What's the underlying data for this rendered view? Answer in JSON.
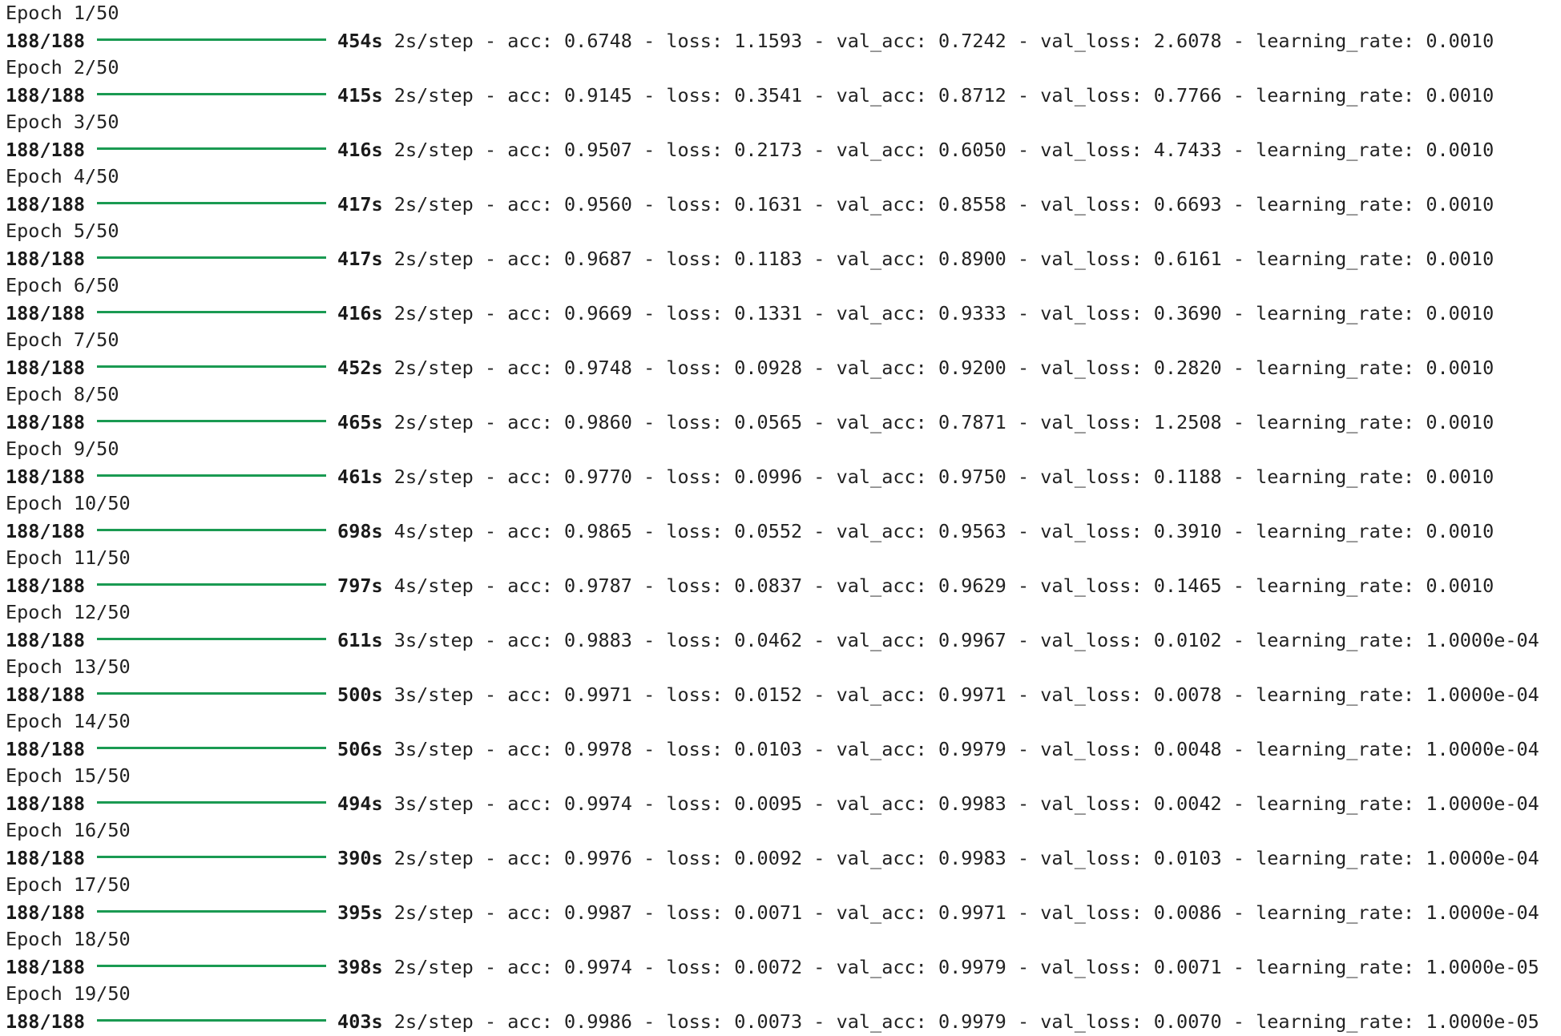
{
  "log": {
    "epochs": [
      {
        "header": "Epoch 1/50",
        "steps": "188/188",
        "time": "454s",
        "per_step": "2s/step",
        "acc": "0.6748",
        "loss": "1.1593",
        "val_acc": "0.7242",
        "val_loss": "2.6078",
        "learning_rate": "0.0010"
      },
      {
        "header": "Epoch 2/50",
        "steps": "188/188",
        "time": "415s",
        "per_step": "2s/step",
        "acc": "0.9145",
        "loss": "0.3541",
        "val_acc": "0.8712",
        "val_loss": "0.7766",
        "learning_rate": "0.0010"
      },
      {
        "header": "Epoch 3/50",
        "steps": "188/188",
        "time": "416s",
        "per_step": "2s/step",
        "acc": "0.9507",
        "loss": "0.2173",
        "val_acc": "0.6050",
        "val_loss": "4.7433",
        "learning_rate": "0.0010"
      },
      {
        "header": "Epoch 4/50",
        "steps": "188/188",
        "time": "417s",
        "per_step": "2s/step",
        "acc": "0.9560",
        "loss": "0.1631",
        "val_acc": "0.8558",
        "val_loss": "0.6693",
        "learning_rate": "0.0010"
      },
      {
        "header": "Epoch 5/50",
        "steps": "188/188",
        "time": "417s",
        "per_step": "2s/step",
        "acc": "0.9687",
        "loss": "0.1183",
        "val_acc": "0.8900",
        "val_loss": "0.6161",
        "learning_rate": "0.0010"
      },
      {
        "header": "Epoch 6/50",
        "steps": "188/188",
        "time": "416s",
        "per_step": "2s/step",
        "acc": "0.9669",
        "loss": "0.1331",
        "val_acc": "0.9333",
        "val_loss": "0.3690",
        "learning_rate": "0.0010"
      },
      {
        "header": "Epoch 7/50",
        "steps": "188/188",
        "time": "452s",
        "per_step": "2s/step",
        "acc": "0.9748",
        "loss": "0.0928",
        "val_acc": "0.9200",
        "val_loss": "0.2820",
        "learning_rate": "0.0010"
      },
      {
        "header": "Epoch 8/50",
        "steps": "188/188",
        "time": "465s",
        "per_step": "2s/step",
        "acc": "0.9860",
        "loss": "0.0565",
        "val_acc": "0.7871",
        "val_loss": "1.2508",
        "learning_rate": "0.0010"
      },
      {
        "header": "Epoch 9/50",
        "steps": "188/188",
        "time": "461s",
        "per_step": "2s/step",
        "acc": "0.9770",
        "loss": "0.0996",
        "val_acc": "0.9750",
        "val_loss": "0.1188",
        "learning_rate": "0.0010"
      },
      {
        "header": "Epoch 10/50",
        "steps": "188/188",
        "time": "698s",
        "per_step": "4s/step",
        "acc": "0.9865",
        "loss": "0.0552",
        "val_acc": "0.9563",
        "val_loss": "0.3910",
        "learning_rate": "0.0010"
      },
      {
        "header": "Epoch 11/50",
        "steps": "188/188",
        "time": "797s",
        "per_step": "4s/step",
        "acc": "0.9787",
        "loss": "0.0837",
        "val_acc": "0.9629",
        "val_loss": "0.1465",
        "learning_rate": "0.0010"
      },
      {
        "header": "Epoch 12/50",
        "steps": "188/188",
        "time": "611s",
        "per_step": "3s/step",
        "acc": "0.9883",
        "loss": "0.0462",
        "val_acc": "0.9967",
        "val_loss": "0.0102",
        "learning_rate": "1.0000e-04"
      },
      {
        "header": "Epoch 13/50",
        "steps": "188/188",
        "time": "500s",
        "per_step": "3s/step",
        "acc": "0.9971",
        "loss": "0.0152",
        "val_acc": "0.9971",
        "val_loss": "0.0078",
        "learning_rate": "1.0000e-04"
      },
      {
        "header": "Epoch 14/50",
        "steps": "188/188",
        "time": "506s",
        "per_step": "3s/step",
        "acc": "0.9978",
        "loss": "0.0103",
        "val_acc": "0.9979",
        "val_loss": "0.0048",
        "learning_rate": "1.0000e-04"
      },
      {
        "header": "Epoch 15/50",
        "steps": "188/188",
        "time": "494s",
        "per_step": "3s/step",
        "acc": "0.9974",
        "loss": "0.0095",
        "val_acc": "0.9983",
        "val_loss": "0.0042",
        "learning_rate": "1.0000e-04"
      },
      {
        "header": "Epoch 16/50",
        "steps": "188/188",
        "time": "390s",
        "per_step": "2s/step",
        "acc": "0.9976",
        "loss": "0.0092",
        "val_acc": "0.9983",
        "val_loss": "0.0103",
        "learning_rate": "1.0000e-04"
      },
      {
        "header": "Epoch 17/50",
        "steps": "188/188",
        "time": "395s",
        "per_step": "2s/step",
        "acc": "0.9987",
        "loss": "0.0071",
        "val_acc": "0.9971",
        "val_loss": "0.0086",
        "learning_rate": "1.0000e-04"
      },
      {
        "header": "Epoch 18/50",
        "steps": "188/188",
        "time": "398s",
        "per_step": "2s/step",
        "acc": "0.9974",
        "loss": "0.0072",
        "val_acc": "0.9979",
        "val_loss": "0.0071",
        "learning_rate": "1.0000e-05"
      },
      {
        "header": "Epoch 19/50",
        "steps": "188/188",
        "time": "403s",
        "per_step": "2s/step",
        "acc": "0.9986",
        "loss": "0.0073",
        "val_acc": "0.9979",
        "val_loss": "0.0070",
        "learning_rate": "1.0000e-05"
      }
    ],
    "progress_fraction": 1.0,
    "colors": {
      "progress_bar": "#1a9a52",
      "text": "#222222",
      "background": "#ffffff"
    }
  }
}
